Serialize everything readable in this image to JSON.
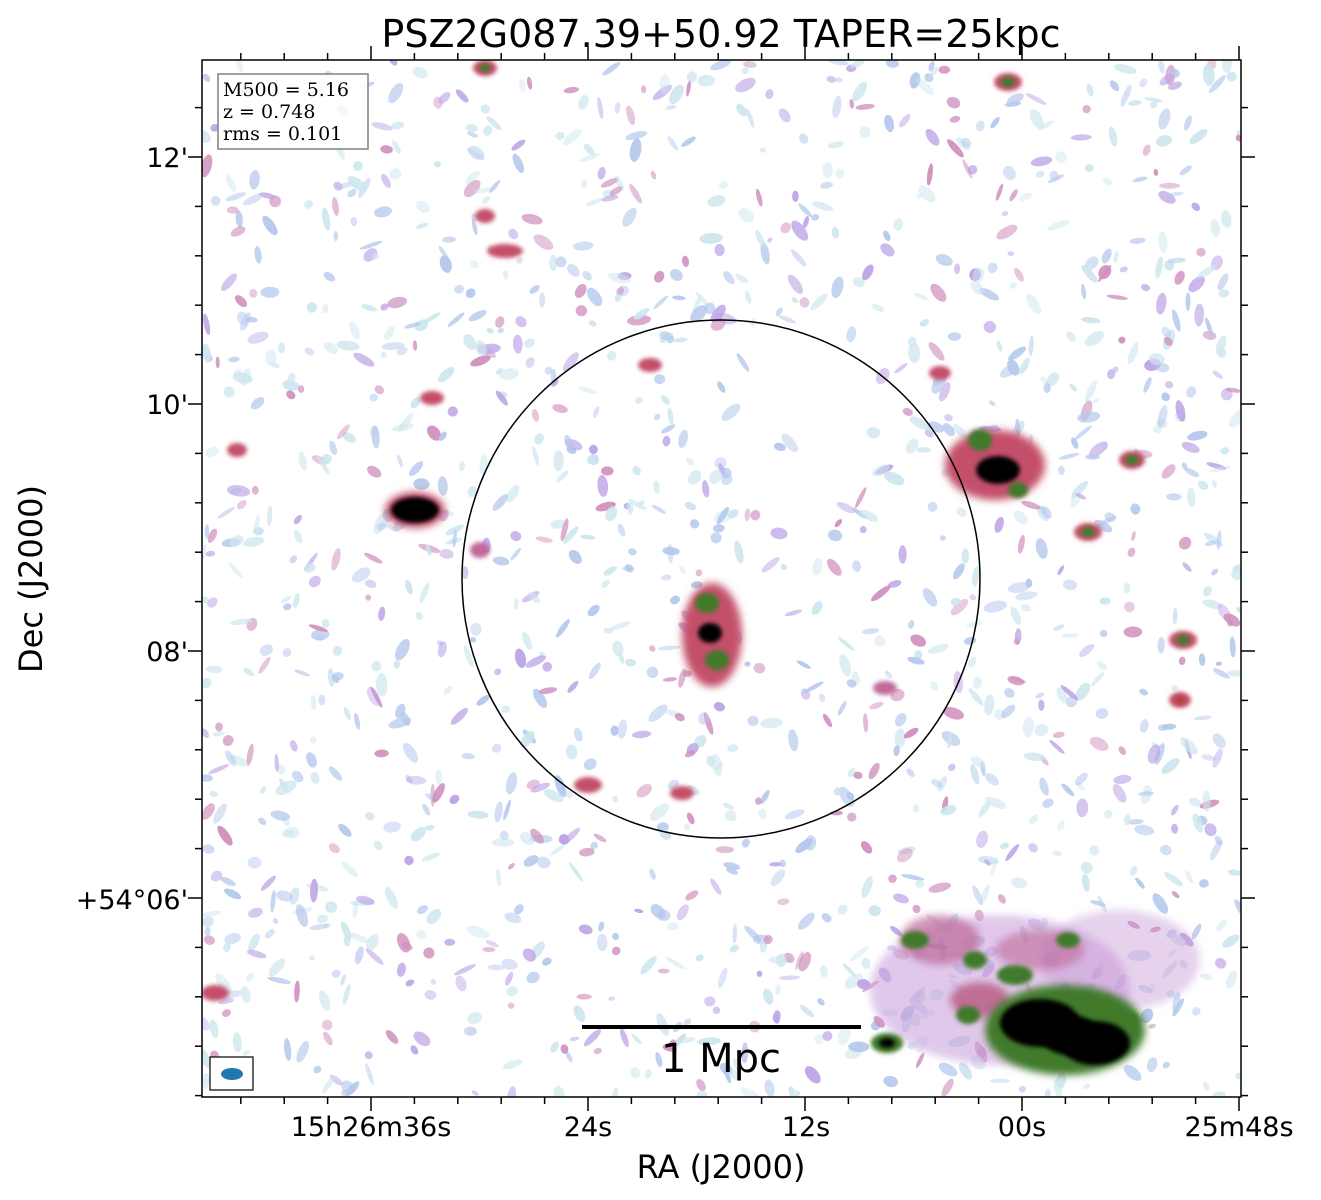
{
  "figure": {
    "title": "PSZ2G087.39+50.92 TAPER=25kpc",
    "xlabel": "RA (J2000)",
    "ylabel": "Dec (J2000)",
    "x_ticks": [
      "15h26m36s",
      "24s",
      "12s",
      "00s",
      "25m48s"
    ],
    "y_ticks": [
      "12'",
      "10'",
      "08'",
      "+54°06'"
    ]
  },
  "info_box": {
    "lines": [
      "M500 = 5.16",
      "z = 0.748",
      "rms = 0.101"
    ]
  },
  "scale_bar": {
    "label": "1 Mpc"
  },
  "colors": {
    "noise_light": "#cde6ee",
    "noise_blue": "#b4c8ec",
    "noise_purple": "#bca3e6",
    "noise_pink": "#cf8fbd",
    "source_red": "#c4506a",
    "source_green": "#3f7a2a",
    "source_core": "#000000",
    "beam": "#1f77b4"
  }
}
